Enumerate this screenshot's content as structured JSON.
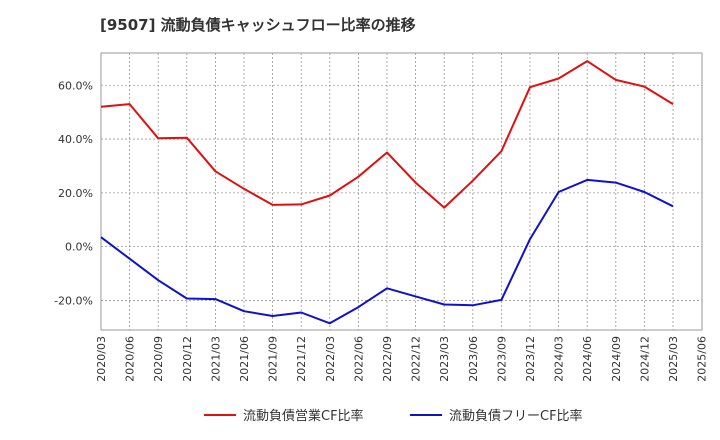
{
  "chart_data": {
    "type": "line",
    "title": "[9507]  流動負債キャッシュフロー比率の推移",
    "xlabel": "",
    "ylabel": "",
    "ylim": [
      -31,
      72
    ],
    "y_ticks": [
      -20,
      0,
      20,
      40,
      60
    ],
    "y_tick_labels": [
      "-20.0%",
      "0.0%",
      "20.0%",
      "40.0%",
      "60.0%"
    ],
    "categories": [
      "2020/03",
      "2020/06",
      "2020/09",
      "2020/12",
      "2021/03",
      "2021/06",
      "2021/09",
      "2021/12",
      "2022/03",
      "2022/06",
      "2022/09",
      "2022/12",
      "2023/03",
      "2023/06",
      "2023/09",
      "2023/12",
      "2024/03",
      "2024/06",
      "2024/09",
      "2024/12",
      "2025/03",
      "2025/06"
    ],
    "series": [
      {
        "name": "流動負債営業CF比率",
        "color": "#dd1111",
        "values": [
          52.0,
          53.0,
          40.3,
          40.5,
          28.0,
          21.5,
          15.5,
          15.7,
          19.0,
          26.0,
          35.0,
          23.8,
          14.5,
          24.5,
          35.5,
          59.3,
          62.5,
          69.0,
          62.0,
          59.5,
          53.0,
          null
        ]
      },
      {
        "name": "流動負債フリーCF比率",
        "color": "#1111cc",
        "values": [
          3.5,
          -4.5,
          -12.5,
          -19.3,
          -19.5,
          -24.0,
          -25.8,
          -24.5,
          -28.5,
          -22.5,
          -15.5,
          -18.5,
          -21.5,
          -21.8,
          -19.8,
          2.8,
          20.3,
          24.8,
          23.8,
          20.3,
          15.0,
          null
        ]
      }
    ],
    "legend_position": "bottom",
    "grid": true
  }
}
